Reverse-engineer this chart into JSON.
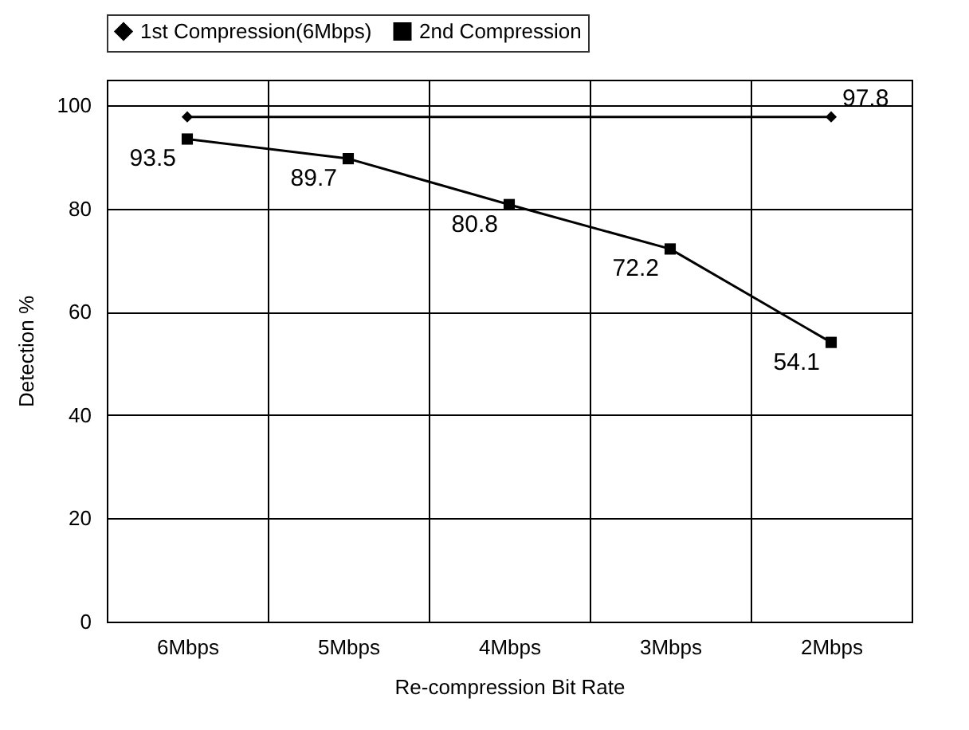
{
  "chart_data": {
    "type": "line",
    "xlabel": "Re-compression Bit Rate",
    "ylabel": "Detection %",
    "categories": [
      "6Mbps",
      "5Mbps",
      "4Mbps",
      "3Mbps",
      "2Mbps"
    ],
    "series": [
      {
        "name": "1st Compression(6Mbps)",
        "color": "#000000",
        "marker": "diamond",
        "values": [
          97.8,
          null,
          null,
          null,
          97.8
        ],
        "value_labels": [
          null,
          null,
          null,
          null,
          "97.8"
        ]
      },
      {
        "name": "2nd Compression",
        "color": "#000000",
        "marker": "square",
        "values": [
          93.5,
          89.7,
          80.8,
          72.2,
          54.1
        ],
        "value_labels": [
          "93.5",
          "89.7",
          "80.8",
          "72.2",
          "54.1"
        ]
      }
    ],
    "ylim": [
      0,
      105
    ],
    "yticks": [
      0,
      20,
      40,
      60,
      80,
      100
    ],
    "grid": true,
    "legend": "top",
    "line_style": "solid"
  }
}
